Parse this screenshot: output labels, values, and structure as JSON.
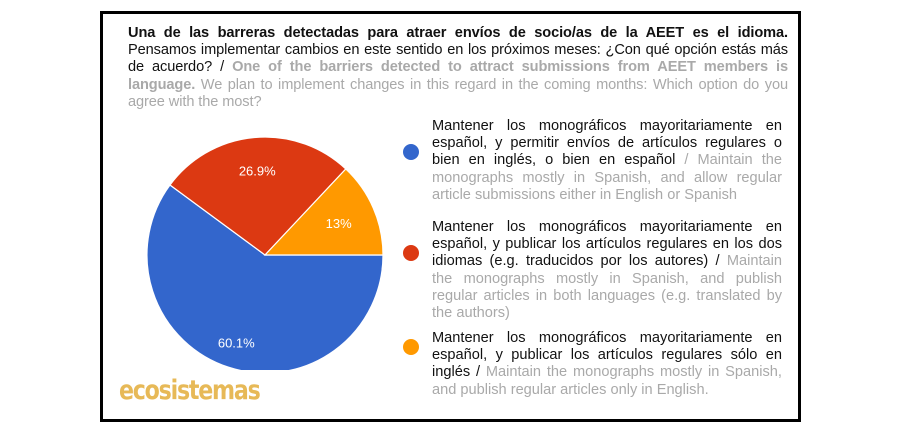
{
  "title": {
    "spanish_bold": "Una de las barreras detectadas para atraer envíos de socio/as de la AEET es el idioma.",
    "spanish_regular": " Pensamos implementar cambios en este sentido en los próximos meses: ¿Con qué opción estás más de acuerdo? / ",
    "english_bold": "One of the barriers detected to attract submissions from AEET members is language.",
    "english_regular": " We plan to implement changes in this regard in the coming months: Which option do you agree with the most?"
  },
  "logo": {
    "text": "ecosistemas",
    "color": "#e7b957"
  },
  "legend": [
    {
      "color": "#3366cc",
      "spanish": "Mantener los monográficos mayoritariamente en español, y permitir envíos de artículos regulares o bien en inglés, o bien en español",
      "english": " / Maintain the monographs mostly in Spanish, and allow regular article submissions either in English or Spanish"
    },
    {
      "color": "#dc3912",
      "spanish": "Mantener los monográficos mayoritariamente en español, y publicar los artículos regulares en los dos idiomas (e.g. traducidos por los autores) /",
      "english": " Maintain the monographs mostly in Spanish, and publish regular articles in both languages (e.g. translated by the authors)"
    },
    {
      "color": "#ff9900",
      "spanish": "Mantener los monográficos mayoritariamente en español, y publicar los artículos regulares sólo en inglés /",
      "english": " Maintain the monographs mostly in Spanish, and publish regular articles only in English."
    }
  ],
  "chart_data": {
    "type": "pie",
    "title": "Una de las barreras detectadas para atraer envíos de socio/as de la AEET es el idioma. Pensamos implementar cambios en este sentido en los próximos meses: ¿Con qué opción estás más de acuerdo? / One of the barriers detected to attract submissions from AEET members is language. We plan to implement changes in this regard in the coming months: Which option do you agree with the most?",
    "categories": [
      "Mantener los monográficos mayoritariamente en español, y permitir envíos de artículos regulares o bien en inglés, o bien en español / Maintain the monographs mostly in Spanish, and allow regular article submissions either in English or Spanish",
      "Mantener los monográficos mayoritariamente en español, y publicar los artículos regulares en los dos idiomas (e.g. traducidos por los autores) / Maintain the monographs mostly in Spanish, and publish regular articles in both languages (e.g. translated by the authors)",
      "Mantener los monográficos mayoritariamente en español, y publicar los artículos regulares sólo en inglés / Maintain the monographs mostly in Spanish, and publish regular articles only in English."
    ],
    "values": [
      60.1,
      26.9,
      13
    ],
    "labels": [
      "60.1%",
      "26.9%",
      "13%"
    ],
    "colors": [
      "#3366cc",
      "#dc3912",
      "#ff9900"
    ],
    "legend_position": "right",
    "units": "%"
  }
}
